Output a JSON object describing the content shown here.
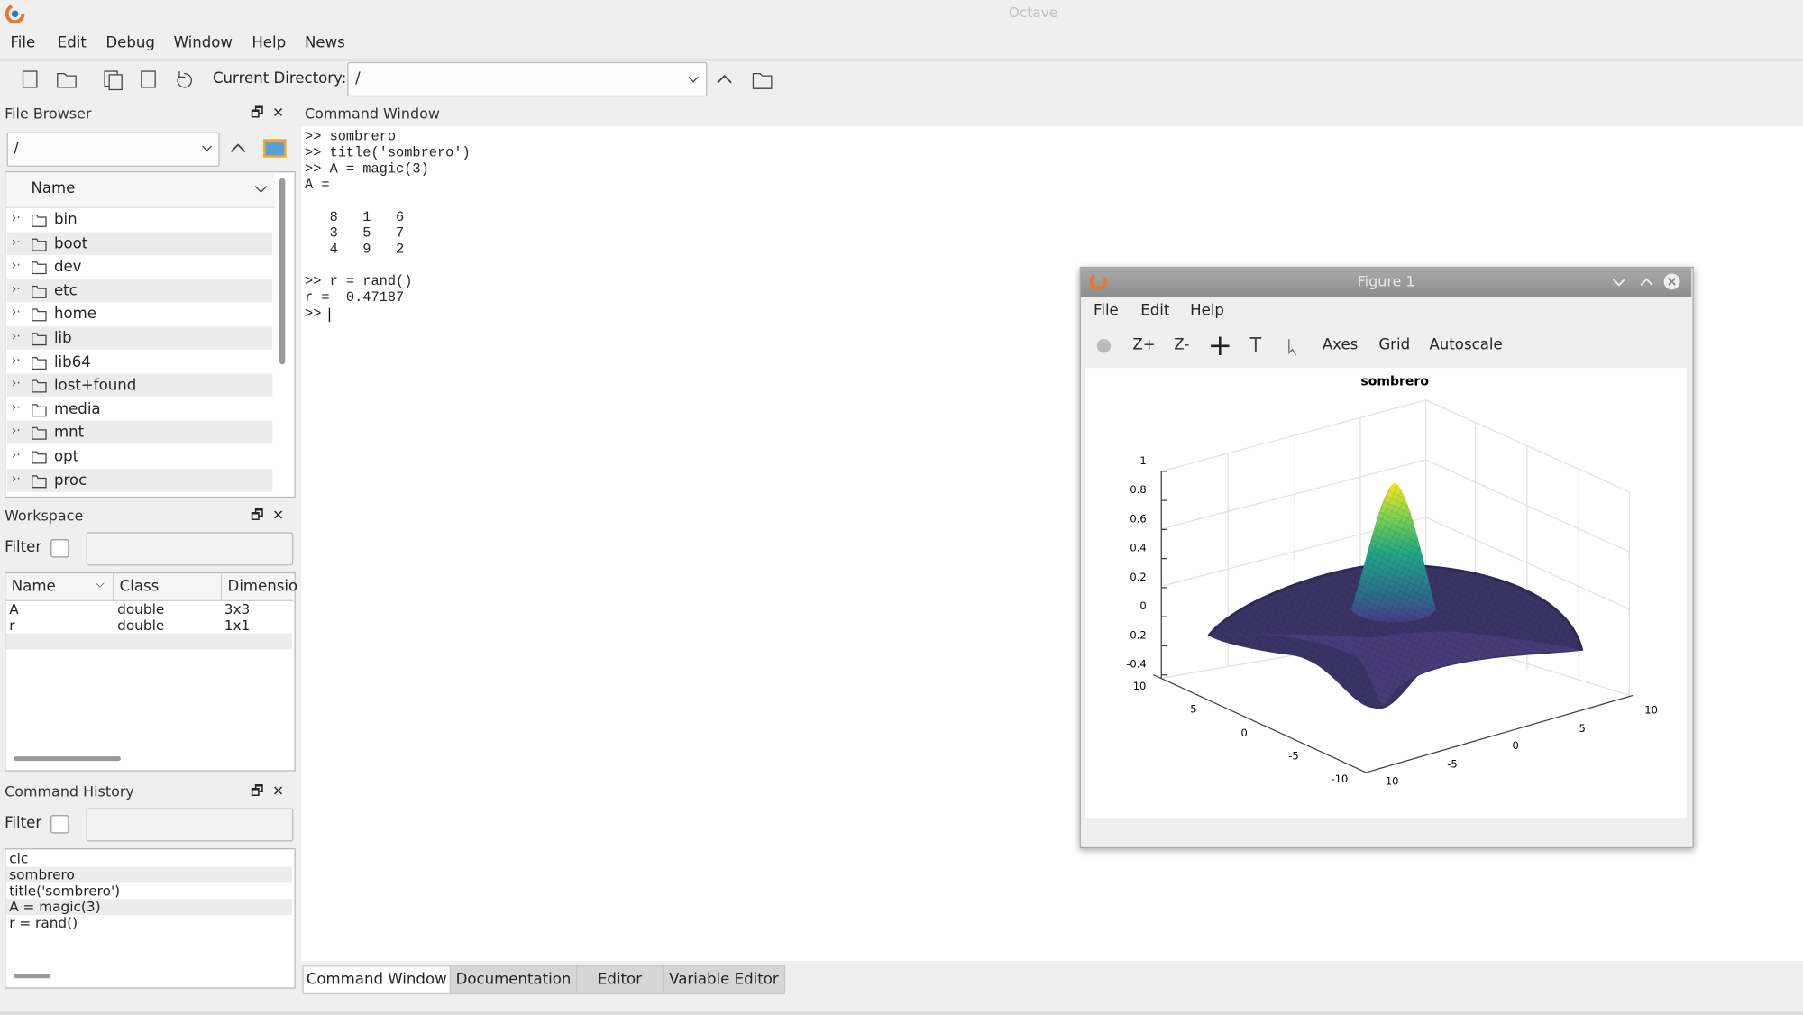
{
  "window_title": "Octave",
  "menu": [
    "File",
    "Edit",
    "Debug",
    "Window",
    "Help",
    "News"
  ],
  "toolbar": {
    "current_directory_label": "Current Directory:",
    "current_directory": "/"
  },
  "file_browser": {
    "title": "File Browser",
    "path": "/",
    "column": "Name",
    "entries": [
      "bin",
      "boot",
      "dev",
      "etc",
      "home",
      "lib",
      "lib64",
      "lost+found",
      "media",
      "mnt",
      "opt",
      "proc"
    ]
  },
  "workspace": {
    "title": "Workspace",
    "filter_label": "Filter",
    "columns": [
      "Name",
      "Class",
      "Dimensio"
    ],
    "rows": [
      [
        "A",
        "double",
        "3x3"
      ],
      [
        "r",
        "double",
        "1x1"
      ]
    ]
  },
  "command_history": {
    "title": "Command History",
    "filter_label": "Filter",
    "entries": [
      "clc",
      "sombrero",
      "title('sombrero')",
      "A = magic(3)",
      "r = rand()"
    ]
  },
  "command_window": {
    "title": "Command Window",
    "lines": [
      ">> sombrero",
      ">> title('sombrero')",
      ">> A = magic(3)",
      "A =",
      "   8   1   6",
      "   3   5   7",
      "   4   9   2",
      ">> r = rand()",
      "r =  0.47187",
      ">> "
    ]
  },
  "figure": {
    "title": "Figure 1",
    "menu": [
      "File",
      "Edit",
      "Help"
    ],
    "toolbar": [
      "Z+",
      "Z-",
      "Axes",
      "Grid",
      "Autoscale"
    ],
    "plot_title": "sombrero",
    "z_ticks": [
      1,
      0.8,
      0.6,
      0.4,
      0.2,
      0,
      -0.2,
      -0.4
    ],
    "x_ticks": [
      10,
      5,
      0,
      -5,
      -10
    ],
    "y_ticks": [
      -10,
      -5,
      0,
      5,
      10
    ]
  },
  "tabs": [
    "Command Window",
    "Documentation",
    "Editor",
    "Variable Editor"
  ]
}
